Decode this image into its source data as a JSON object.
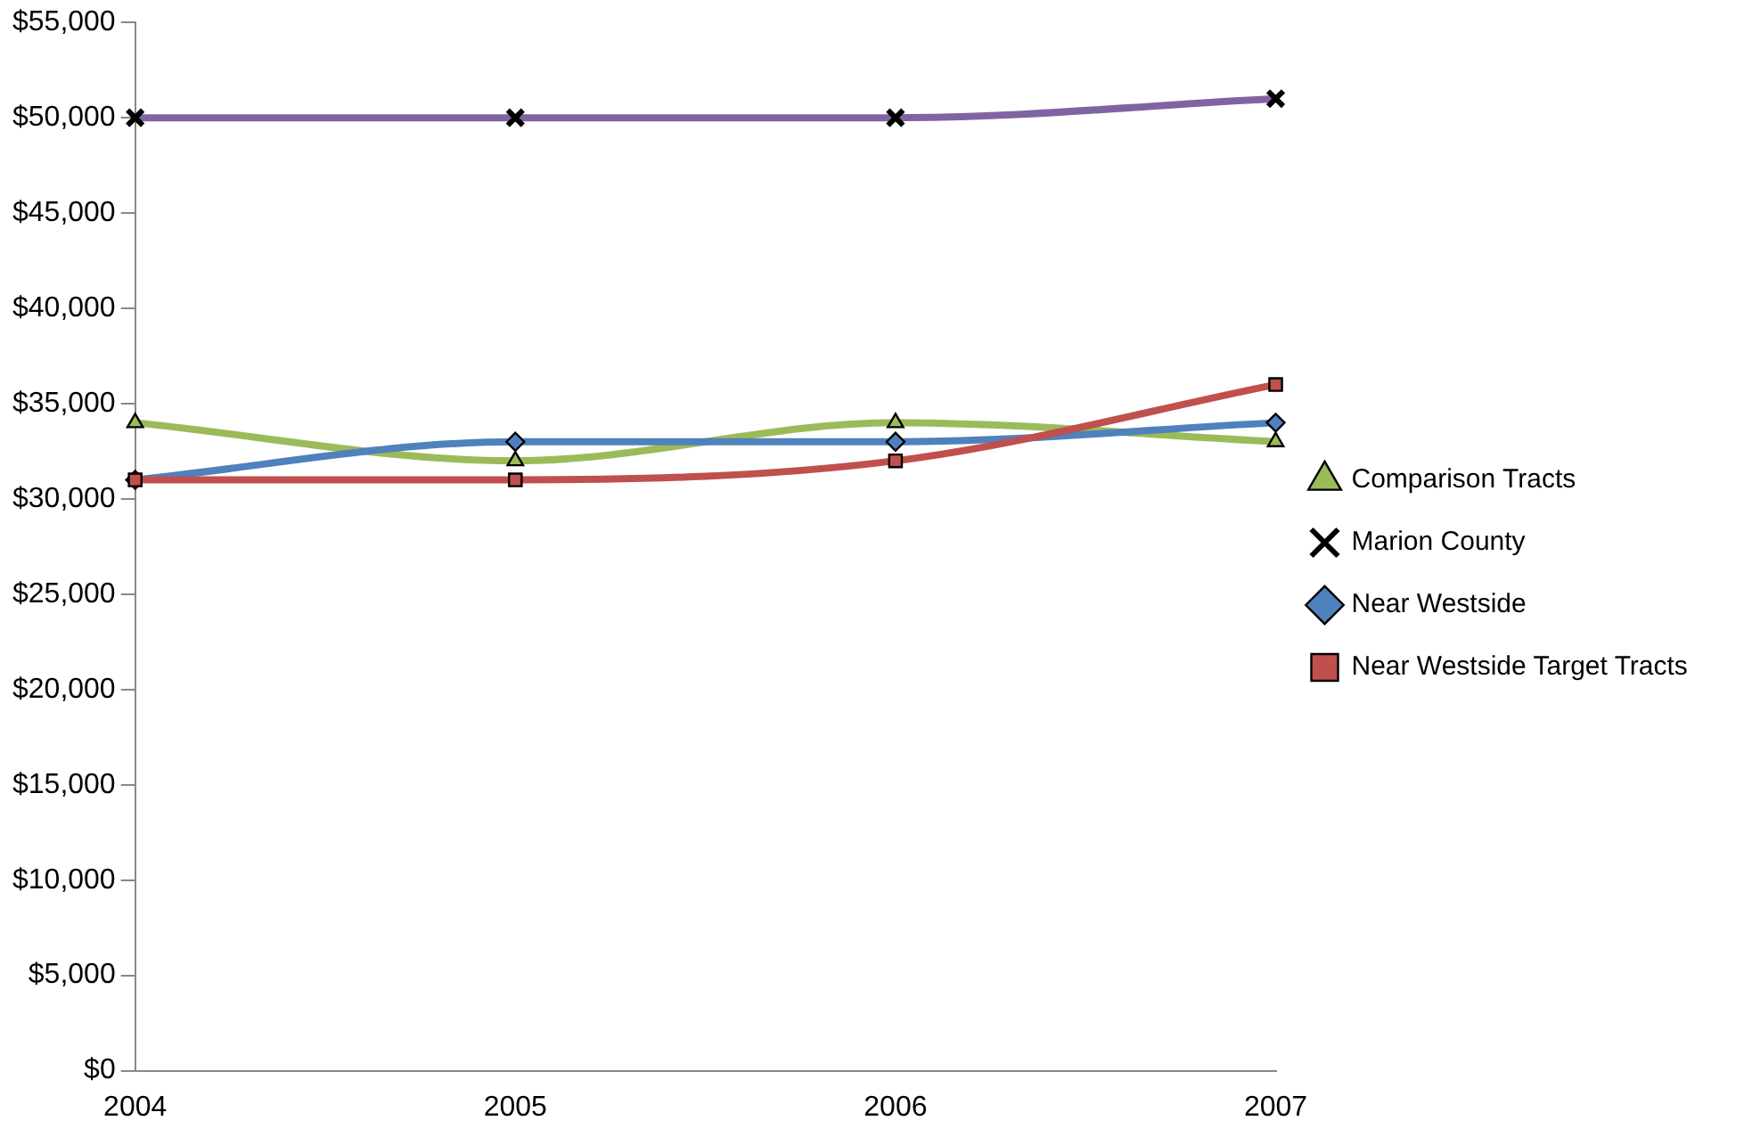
{
  "chart_data": {
    "type": "line",
    "categories": [
      "2004",
      "2005",
      "2006",
      "2007"
    ],
    "ylim": [
      0,
      55000
    ],
    "yticks": [
      {
        "value": 0,
        "label": "$0"
      },
      {
        "value": 5000,
        "label": "$5,000"
      },
      {
        "value": 10000,
        "label": "$10,000"
      },
      {
        "value": 15000,
        "label": "$15,000"
      },
      {
        "value": 20000,
        "label": "$20,000"
      },
      {
        "value": 25000,
        "label": "$25,000"
      },
      {
        "value": 30000,
        "label": "$30,000"
      },
      {
        "value": 35000,
        "label": "$35,000"
      },
      {
        "value": 40000,
        "label": "$40,000"
      },
      {
        "value": 45000,
        "label": "$45,000"
      },
      {
        "value": 50000,
        "label": "$50,000"
      },
      {
        "value": 55000,
        "label": "$55,000"
      }
    ],
    "grid": false,
    "legend": "right",
    "series": [
      {
        "name": "Comparison Tracts",
        "color": "#9bbb59",
        "marker": "triangle",
        "values": [
          34000,
          32000,
          34000,
          33000
        ]
      },
      {
        "name": "Marion County",
        "color": "#8064a2",
        "marker": "cross",
        "values": [
          50000,
          50000,
          50000,
          51000
        ]
      },
      {
        "name": "Near Westside",
        "color": "#4f81bd",
        "marker": "diamond",
        "values": [
          31000,
          33000,
          33000,
          34000
        ]
      },
      {
        "name": "Near Westside Target Tracts",
        "color": "#c0504d",
        "marker": "square",
        "values": [
          31000,
          31000,
          32000,
          36000
        ]
      }
    ]
  }
}
